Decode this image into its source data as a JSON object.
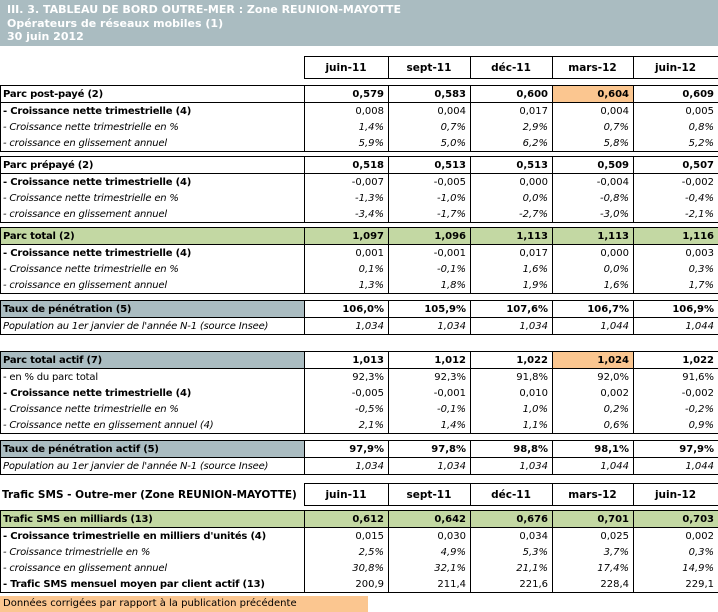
{
  "header": {
    "line1": "III. 3. TABLEAU DE BORD OUTRE-MER : Zone REUNION-MAYOTTE",
    "line2": "Opérateurs de réseaux mobiles (1)",
    "line3": "30 juin 2012"
  },
  "columns": [
    "juin-11",
    "sept-11",
    "déc-11",
    "mars-12",
    "juin-12"
  ],
  "colors": {
    "header_bg": "#aabcc1",
    "green_row_bg": "#c3d8a3",
    "orange_highlight_bg": "#fbc690",
    "border": "#000000"
  },
  "sections": [
    {
      "id": "parc-post-paye",
      "rows": [
        {
          "label": "Parc post-payé (2)",
          "style": "primary",
          "highlight": [
            3
          ],
          "values": [
            "0,579",
            "0,583",
            "0,600",
            "0,604",
            "0,609"
          ]
        },
        {
          "label": "- Croissance nette trimestrielle (4)",
          "style": "boldlabel",
          "values": [
            "0,008",
            "0,004",
            "0,017",
            "0,004",
            "0,005"
          ]
        },
        {
          "label": "- Croissance nette trimestrielle en %",
          "style": "italic",
          "values": [
            "1,4%",
            "0,7%",
            "2,9%",
            "0,7%",
            "0,8%"
          ]
        },
        {
          "label": "- croissance en glissement annuel",
          "style": "italic",
          "values": [
            "5,9%",
            "5,0%",
            "6,2%",
            "5,8%",
            "5,2%"
          ]
        }
      ]
    },
    {
      "id": "parc-prepaye",
      "rows": [
        {
          "label": "Parc prépayé (2)",
          "style": "primary",
          "values": [
            "0,518",
            "0,513",
            "0,513",
            "0,509",
            "0,507"
          ]
        },
        {
          "label": "- Croissance nette trimestrielle (4)",
          "style": "boldlabel",
          "values": [
            "-0,007",
            "-0,005",
            "0,000",
            "-0,004",
            "-0,002"
          ]
        },
        {
          "label": "- Croissance nette trimestrielle en %",
          "style": "italic",
          "values": [
            "-1,3%",
            "-1,0%",
            "0,0%",
            "-0,8%",
            "-0,4%"
          ]
        },
        {
          "label": "- croissance en glissement annuel",
          "style": "italic",
          "values": [
            "-3,4%",
            "-1,7%",
            "-2,7%",
            "-3,0%",
            "-2,1%"
          ]
        }
      ]
    },
    {
      "id": "parc-total",
      "rows": [
        {
          "label": "Parc total (2)",
          "style": "primary",
          "row_bg": "green",
          "highlight": [
            3
          ],
          "values": [
            "1,097",
            "1,096",
            "1,113",
            "1,113",
            "1,116"
          ]
        },
        {
          "label": "- Croissance nette trimestrielle (4)",
          "style": "boldlabel",
          "values": [
            "0,001",
            "-0,001",
            "0,017",
            "0,000",
            "0,003"
          ]
        },
        {
          "label": "- Croissance nette trimestrielle en %",
          "style": "italic",
          "values": [
            "0,1%",
            "-0,1%",
            "1,6%",
            "0,0%",
            "0,3%"
          ]
        },
        {
          "label": "- croissance en glissement annuel",
          "style": "italic",
          "values": [
            "1,3%",
            "1,8%",
            "1,9%",
            "1,6%",
            "1,7%"
          ]
        }
      ]
    },
    {
      "id": "taux-penetration",
      "rows": [
        {
          "label": "Taux de pénétration (5)",
          "style": "primary",
          "label_bg": "bluegray",
          "values": [
            "106,0%",
            "105,9%",
            "107,6%",
            "106,7%",
            "106,9%"
          ]
        },
        {
          "label": "Population au 1er janvier de l'année N-1 (source Insee)",
          "style": "italic",
          "values": [
            "1,034",
            "1,034",
            "1,034",
            "1,044",
            "1,044"
          ]
        }
      ]
    },
    {
      "id": "parc-total-actif",
      "rows": [
        {
          "label": "Parc total actif (7)",
          "style": "primary",
          "label_bg": "bluegray",
          "highlight": [
            3
          ],
          "values": [
            "1,013",
            "1,012",
            "1,022",
            "1,024",
            "1,022"
          ]
        },
        {
          "label": "- en % du parc total",
          "style": "regular",
          "values": [
            "92,3%",
            "92,3%",
            "91,8%",
            "92,0%",
            "91,6%"
          ]
        },
        {
          "label": "- Croissance nette trimestrielle (4)",
          "style": "boldlabel",
          "values": [
            "-0,005",
            "-0,001",
            "0,010",
            "0,002",
            "-0,002"
          ]
        },
        {
          "label": "- Croissance nette trimestrielle en %",
          "style": "italic",
          "values": [
            "-0,5%",
            "-0,1%",
            "1,0%",
            "0,2%",
            "-0,2%"
          ]
        },
        {
          "label": "- Croissance nette en glissement annuel (4)",
          "style": "italic",
          "values": [
            "2,1%",
            "1,4%",
            "1,1%",
            "0,6%",
            "0,9%"
          ]
        }
      ]
    },
    {
      "id": "taux-penetration-actif",
      "rows": [
        {
          "label": "Taux de pénétration actif (5)",
          "style": "primary",
          "label_bg": "bluegray",
          "values": [
            "97,9%",
            "97,8%",
            "98,8%",
            "98,1%",
            "97,9%"
          ]
        },
        {
          "label": "Population au 1er janvier de l'année N-1 (source Insee)",
          "style": "italic",
          "values": [
            "1,034",
            "1,034",
            "1,034",
            "1,044",
            "1,044"
          ]
        }
      ]
    }
  ],
  "sms": {
    "header_label": "Trafic SMS - Outre-mer (Zone REUNION-MAYOTTE)",
    "section": {
      "id": "trafic-sms",
      "rows": [
        {
          "label": "Trafic SMS en milliards (13)",
          "style": "primary",
          "row_bg": "green",
          "values": [
            "0,612",
            "0,642",
            "0,676",
            "0,701",
            "0,703"
          ]
        },
        {
          "label": "- Croissance trimestrielle en milliers d'unités (4)",
          "style": "boldlabel",
          "values": [
            "0,015",
            "0,030",
            "0,034",
            "0,025",
            "0,002"
          ]
        },
        {
          "label": "- Croissance trimestrielle en %",
          "style": "italic",
          "values": [
            "2,5%",
            "4,9%",
            "5,3%",
            "3,7%",
            "0,3%"
          ]
        },
        {
          "label": "- croissance en glissement annuel",
          "style": "italic",
          "values": [
            "30,8%",
            "32,1%",
            "21,1%",
            "17,4%",
            "14,9%"
          ]
        },
        {
          "label": "- Trafic SMS mensuel moyen par client actif (13)",
          "style": "boldlabel",
          "values": [
            "200,9",
            "211,4",
            "221,6",
            "228,4",
            "229,1"
          ]
        }
      ]
    }
  },
  "footer_note": "Données corrigées par rapport à la publication précédente"
}
